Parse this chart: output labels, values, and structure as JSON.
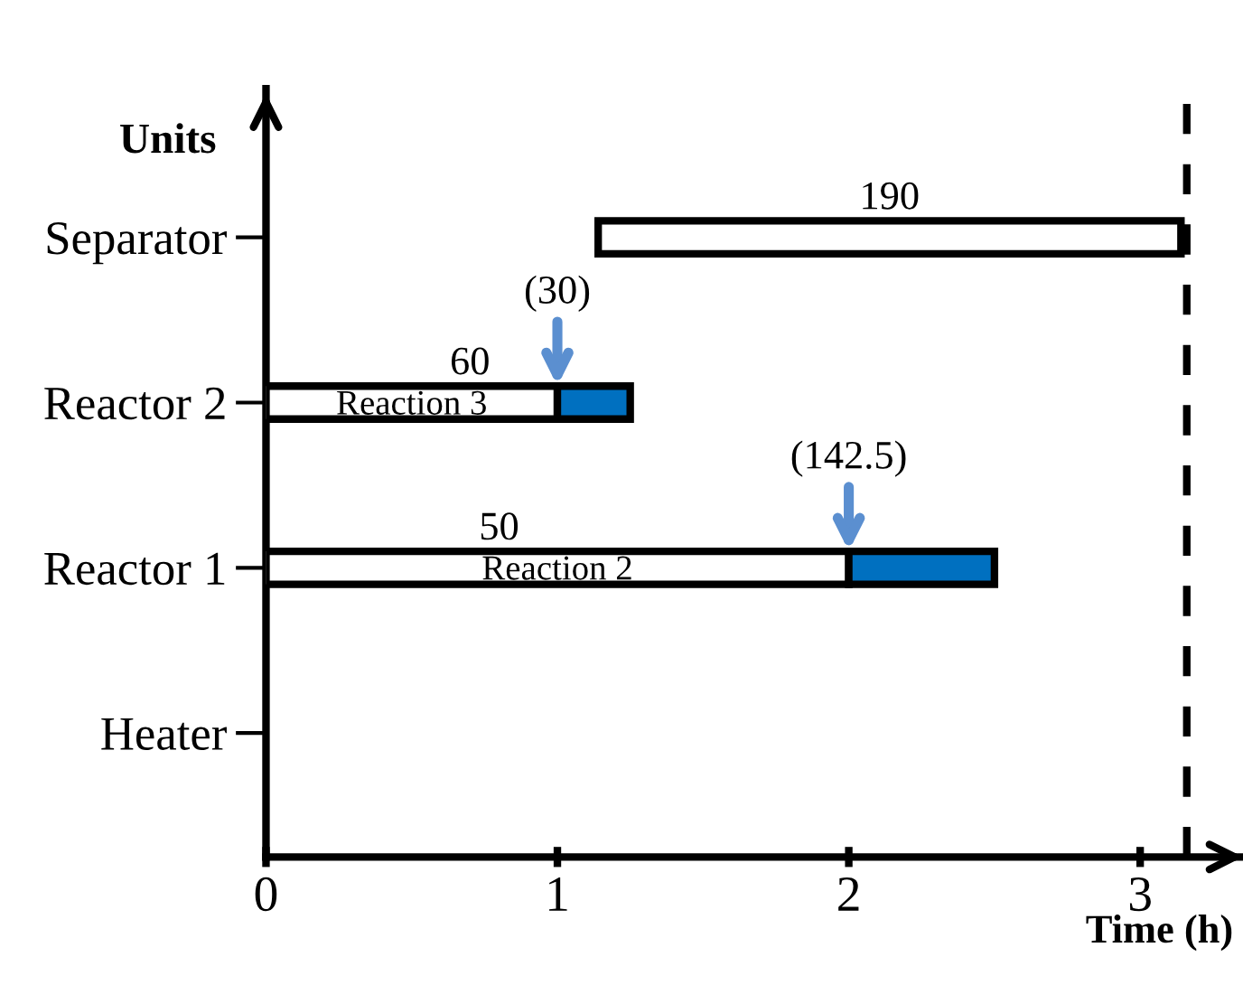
{
  "chart_data": {
    "type": "bar",
    "orientation": "horizontal",
    "xlabel": "Time (h)",
    "ylabel": "Units",
    "categories": [
      "Separator",
      "Reactor 2",
      "Reactor 1",
      "Heater"
    ],
    "series": [
      {
        "color": "#ffffff",
        "base": [
          1.14,
          0,
          0,
          null
        ],
        "values": [
          2.0,
          1.0,
          2.0,
          null
        ]
      },
      {
        "color": "#0070c0",
        "base": [
          null,
          1.0,
          2.0,
          null
        ],
        "values": [
          null,
          0.25,
          0.5,
          null
        ]
      }
    ],
    "xlim": [
      0,
      3.37
    ],
    "xticks": [
      0,
      1,
      2,
      3
    ],
    "ref_lines": [
      {
        "axis": "x",
        "value": 3.16,
        "color": "#000000",
        "line_style": "dashed"
      }
    ],
    "annotations": [
      "190",
      "60",
      "50",
      "Reaction 3",
      "Reaction 2",
      {
        "text": "(30)",
        "x": 1.0,
        "y": "Reactor 2"
      },
      {
        "text": "(142.5)",
        "x": 2.0,
        "y": "Reactor 1"
      }
    ],
    "grid": false
  }
}
